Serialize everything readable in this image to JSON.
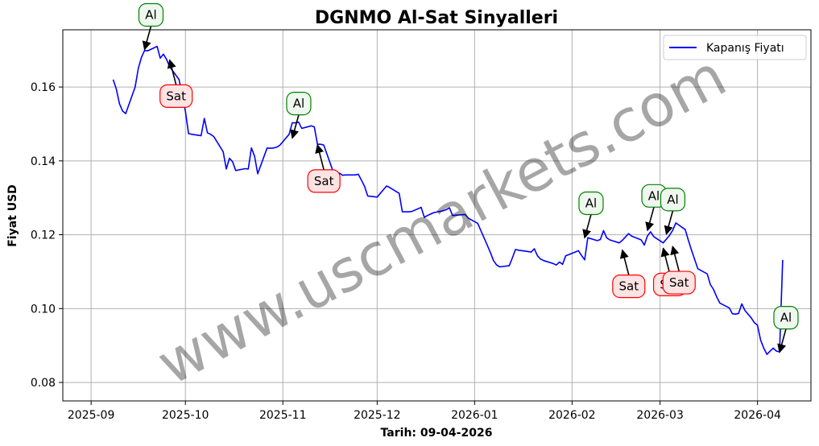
{
  "chart_data": {
    "type": "line",
    "title": "DGNMO Al-Sat Sinyalleri",
    "xlabel": "Tarih: 09-04-2026",
    "ylabel": "Fiyat USD",
    "watermark": "www.uscmarkets.com",
    "legend": {
      "placement": "top-right",
      "entries": [
        "Kapanış Fiyatı"
      ]
    },
    "grid": true,
    "xlim": [
      "2025-08-23",
      "2026-04-18"
    ],
    "ylim": [
      0.075,
      0.1755
    ],
    "x_ticks": [
      "2025-09",
      "2025-10",
      "2025-11",
      "2025-12",
      "2026-01",
      "2026-02",
      "2026-03",
      "2026-04"
    ],
    "y_ticks": [
      "0.08",
      "0.10",
      "0.12",
      "0.14",
      "0.16"
    ],
    "series": [
      {
        "name": "Kapanış Fiyatı",
        "color": "#0000ff",
        "points": [
          [
            "2025-09-08",
            0.162
          ],
          [
            "2025-09-09",
            0.1595
          ],
          [
            "2025-09-10",
            0.1555
          ],
          [
            "2025-09-11",
            0.1535
          ],
          [
            "2025-09-12",
            0.1528
          ],
          [
            "2025-09-15",
            0.16
          ],
          [
            "2025-09-16",
            0.165
          ],
          [
            "2025-09-17",
            0.168
          ],
          [
            "2025-09-18",
            0.1699
          ],
          [
            "2025-09-19",
            0.1698
          ],
          [
            "2025-09-22",
            0.171
          ],
          [
            "2025-09-23",
            0.1678
          ],
          [
            "2025-09-24",
            0.1689
          ],
          [
            "2025-09-25",
            0.1675
          ],
          [
            "2025-09-26",
            0.1655
          ],
          [
            "2025-09-29",
            0.162
          ],
          [
            "2025-09-30",
            0.1575
          ],
          [
            "2025-10-01",
            0.1535
          ],
          [
            "2025-10-02",
            0.1474
          ],
          [
            "2025-10-03",
            0.1472
          ],
          [
            "2025-10-06",
            0.1468
          ],
          [
            "2025-10-07",
            0.1515
          ],
          [
            "2025-10-08",
            0.1476
          ],
          [
            "2025-10-09",
            0.1472
          ],
          [
            "2025-10-10",
            0.1466
          ],
          [
            "2025-10-13",
            0.1425
          ],
          [
            "2025-10-14",
            0.1378
          ],
          [
            "2025-10-15",
            0.1407
          ],
          [
            "2025-10-16",
            0.1398
          ],
          [
            "2025-10-17",
            0.1374
          ],
          [
            "2025-10-20",
            0.1379
          ],
          [
            "2025-10-21",
            0.1378
          ],
          [
            "2025-10-22",
            0.1435
          ],
          [
            "2025-10-23",
            0.1413
          ],
          [
            "2025-10-24",
            0.1365
          ],
          [
            "2025-10-27",
            0.1435
          ],
          [
            "2025-10-28",
            0.1434
          ],
          [
            "2025-10-29",
            0.1435
          ],
          [
            "2025-10-30",
            0.1437
          ],
          [
            "2025-10-31",
            0.1442
          ],
          [
            "2025-11-03",
            0.1472
          ],
          [
            "2025-11-04",
            0.1503
          ],
          [
            "2025-11-05",
            0.1503
          ],
          [
            "2025-11-06",
            0.1505
          ],
          [
            "2025-11-07",
            0.1488
          ],
          [
            "2025-11-10",
            0.1495
          ],
          [
            "2025-11-11",
            0.1492
          ],
          [
            "2025-11-12",
            0.1445
          ],
          [
            "2025-11-13",
            0.1445
          ],
          [
            "2025-11-14",
            0.1443
          ],
          [
            "2025-11-17",
            0.1371
          ],
          [
            "2025-11-18",
            0.1362
          ],
          [
            "2025-11-19",
            0.1367
          ],
          [
            "2025-11-20",
            0.1361
          ],
          [
            "2025-11-21",
            0.1362
          ],
          [
            "2025-11-24",
            0.1362
          ],
          [
            "2025-11-25",
            0.1364
          ],
          [
            "2025-11-26",
            0.1348
          ],
          [
            "2025-11-27",
            0.1331
          ],
          [
            "2025-11-28",
            0.1305
          ],
          [
            "2025-12-01",
            0.1302
          ],
          [
            "2025-12-02",
            0.1312
          ],
          [
            "2025-12-03",
            0.1322
          ],
          [
            "2025-12-04",
            0.1332
          ],
          [
            "2025-12-05",
            0.1328
          ],
          [
            "2025-12-08",
            0.1312
          ],
          [
            "2025-12-09",
            0.1262
          ],
          [
            "2025-12-10",
            0.1262
          ],
          [
            "2025-12-11",
            0.1262
          ],
          [
            "2025-12-12",
            0.1263
          ],
          [
            "2025-12-15",
            0.1274
          ],
          [
            "2025-12-16",
            0.1247
          ],
          [
            "2025-12-17",
            0.1252
          ],
          [
            "2025-12-18",
            0.1256
          ],
          [
            "2025-12-19",
            0.126
          ],
          [
            "2025-12-22",
            0.1265
          ],
          [
            "2025-12-23",
            0.1268
          ],
          [
            "2025-12-24",
            0.1273
          ],
          [
            "2025-12-25",
            0.1252
          ],
          [
            "2025-12-26",
            0.1253
          ],
          [
            "2025-12-29",
            0.1255
          ],
          [
            "2025-12-30",
            0.1245
          ],
          [
            "2025-12-31",
            0.124
          ],
          [
            "2026-01-02",
            0.1231
          ],
          [
            "2026-01-05",
            0.1172
          ],
          [
            "2026-01-06",
            0.1152
          ],
          [
            "2026-01-07",
            0.113
          ],
          [
            "2026-01-08",
            0.1118
          ],
          [
            "2026-01-09",
            0.1113
          ],
          [
            "2026-01-12",
            0.1116
          ],
          [
            "2026-01-13",
            0.1137
          ],
          [
            "2026-01-14",
            0.116
          ],
          [
            "2026-01-15",
            0.1158
          ],
          [
            "2026-01-16",
            0.1157
          ],
          [
            "2026-01-19",
            0.1153
          ],
          [
            "2026-01-20",
            0.1162
          ],
          [
            "2026-01-21",
            0.1143
          ],
          [
            "2026-01-22",
            0.1134
          ],
          [
            "2026-01-23",
            0.113
          ],
          [
            "2026-01-26",
            0.1122
          ],
          [
            "2026-01-27",
            0.1118
          ],
          [
            "2026-01-28",
            0.1126
          ],
          [
            "2026-01-29",
            0.112
          ],
          [
            "2026-01-30",
            0.1143
          ],
          [
            "2026-02-02",
            0.1153
          ],
          [
            "2026-02-03",
            0.1157
          ],
          [
            "2026-02-04",
            0.1144
          ],
          [
            "2026-02-05",
            0.1132
          ],
          [
            "2026-02-06",
            0.1192
          ],
          [
            "2026-02-09",
            0.1184
          ],
          [
            "2026-02-10",
            0.1187
          ],
          [
            "2026-02-11",
            0.1211
          ],
          [
            "2026-02-12",
            0.1192
          ],
          [
            "2026-02-13",
            0.1186
          ],
          [
            "2026-02-16",
            0.1178
          ],
          [
            "2026-02-17",
            0.1185
          ],
          [
            "2026-02-18",
            0.1194
          ],
          [
            "2026-02-19",
            0.1203
          ],
          [
            "2026-02-20",
            0.1196
          ],
          [
            "2026-02-23",
            0.1186
          ],
          [
            "2026-02-24",
            0.1172
          ],
          [
            "2026-02-25",
            0.1197
          ],
          [
            "2026-02-26",
            0.1208
          ],
          [
            "2026-02-27",
            0.1195
          ],
          [
            "2026-03-02",
            0.1178
          ],
          [
            "2026-03-03",
            0.1188
          ],
          [
            "2026-03-04",
            0.1198
          ],
          [
            "2026-03-05",
            0.1212
          ],
          [
            "2026-03-06",
            0.1232
          ],
          [
            "2026-03-09",
            0.1214
          ],
          [
            "2026-03-10",
            0.1185
          ],
          [
            "2026-03-11",
            0.1158
          ],
          [
            "2026-03-12",
            0.1133
          ],
          [
            "2026-03-13",
            0.1108
          ],
          [
            "2026-03-16",
            0.1094
          ],
          [
            "2026-03-17",
            0.1065
          ],
          [
            "2026-03-18",
            0.1052
          ],
          [
            "2026-03-19",
            0.1032
          ],
          [
            "2026-03-20",
            0.1015
          ],
          [
            "2026-03-23",
            0.1002
          ],
          [
            "2026-03-24",
            0.0986
          ],
          [
            "2026-03-25",
            0.0985
          ],
          [
            "2026-03-26",
            0.0987
          ],
          [
            "2026-03-27",
            0.1013
          ],
          [
            "2026-03-28",
            0.0995
          ],
          [
            "2026-03-30",
            0.0975
          ],
          [
            "2026-03-31",
            0.0962
          ],
          [
            "2026-04-01",
            0.0955
          ],
          [
            "2026-04-02",
            0.0915
          ],
          [
            "2026-04-03",
            0.0893
          ],
          [
            "2026-04-04",
            0.0876
          ],
          [
            "2026-04-05",
            0.0885
          ],
          [
            "2026-04-06",
            0.0893
          ],
          [
            "2026-04-07",
            0.0885
          ],
          [
            "2026-04-08",
            0.0883
          ],
          [
            "2026-04-09",
            0.1132
          ]
        ]
      }
    ],
    "annotations": [
      {
        "type": "Al",
        "text": "Al",
        "date": "2025-09-18",
        "value": 0.1695
      },
      {
        "type": "Sat",
        "text": "Sat",
        "date": "2025-09-26",
        "value": 0.168
      },
      {
        "type": "Al",
        "text": "Al",
        "date": "2025-11-04",
        "value": 0.1455
      },
      {
        "type": "Sat",
        "text": "Sat",
        "date": "2025-11-12",
        "value": 0.145
      },
      {
        "type": "Al",
        "text": "Al",
        "date": "2026-02-05",
        "value": 0.1185
      },
      {
        "type": "Sat",
        "text": "Sat",
        "date": "2026-02-17",
        "value": 0.1165
      },
      {
        "type": "Al",
        "text": "Al",
        "date": "2026-02-25",
        "value": 0.1205
      },
      {
        "type": "Sat",
        "text": "Sat",
        "date": "2026-03-02",
        "value": 0.117
      },
      {
        "type": "Al",
        "text": "Al",
        "date": "2026-03-03",
        "value": 0.1195
      },
      {
        "type": "Sat",
        "text": "Sat",
        "date": "2026-03-05",
        "value": 0.1175
      },
      {
        "type": "Al",
        "text": "Al",
        "date": "2026-04-08",
        "value": 0.0875
      }
    ],
    "colors": {
      "line": "#0000ff",
      "al_border": "#008000",
      "al_fill": "#eef8ee",
      "sat_border": "#ff0000",
      "sat_fill": "#fde3e3",
      "grid": "#b0b0b0"
    }
  }
}
